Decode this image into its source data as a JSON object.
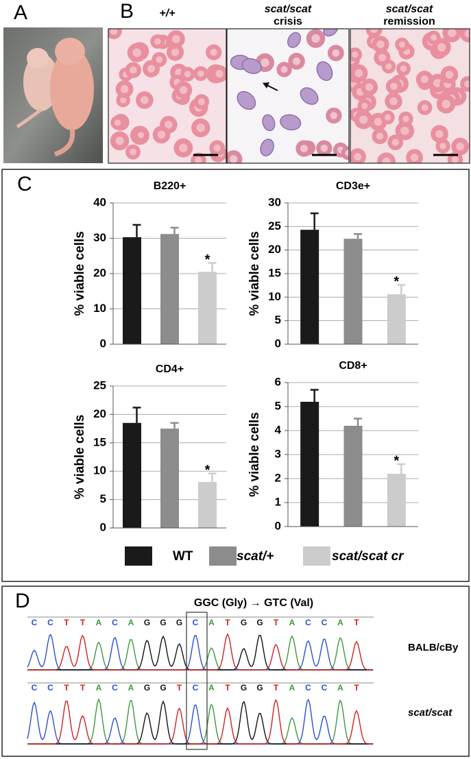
{
  "panel_a": {
    "label": "A"
  },
  "panel_b": {
    "label": "B",
    "images": [
      {
        "title": [
          "+/+"
        ]
      },
      {
        "title": [
          "scat/scat",
          "crisis"
        ]
      },
      {
        "title": [
          "scat/scat",
          "remission"
        ]
      }
    ]
  },
  "panel_c": {
    "label": "C"
  },
  "legend": {
    "entries": [
      {
        "name": "WT",
        "color": "#1a1a1a"
      },
      {
        "name": "scat/+",
        "color": "#8c8c8c"
      },
      {
        "name": "scat/scat cr",
        "color": "#cccccc"
      }
    ]
  },
  "chart_data": [
    {
      "type": "bar",
      "title": "B220+",
      "y_label": "% viable cells",
      "categories": [
        null,
        null,
        null
      ],
      "values": [
        30.3,
        31.2,
        20.5
      ],
      "errors": [
        3.5,
        1.8,
        2.5
      ],
      "annotation": "*",
      "ylim": [
        0,
        40
      ],
      "yticks": [
        0,
        10,
        20,
        30,
        40
      ],
      "grid": true
    },
    {
      "type": "bar",
      "title": "CD3e+",
      "y_label": "% viable cells",
      "categories": [
        null,
        null,
        null
      ],
      "values": [
        24.3,
        22.4,
        10.6
      ],
      "errors": [
        3.5,
        1,
        2
      ],
      "annotation": "*",
      "ylim": [
        0,
        30
      ],
      "yticks": [
        0,
        5,
        10,
        15,
        20,
        25,
        30
      ],
      "grid": true
    },
    {
      "type": "bar",
      "title": "CD4+",
      "y_label": "% viable cells",
      "categories": [
        null,
        null,
        null
      ],
      "values": [
        18.5,
        17.5,
        8.1
      ],
      "errors": [
        2.7,
        1,
        1.5
      ],
      "annotation": "*",
      "ylim": [
        0,
        25
      ],
      "yticks": [
        0,
        5,
        10,
        15,
        20,
        25
      ],
      "grid": true
    },
    {
      "type": "bar",
      "title": "CD8+",
      "y_label": "% viable cells",
      "categories": [
        null,
        null,
        null
      ],
      "values": [
        5.2,
        4.2,
        2.2
      ],
      "errors": [
        0.5,
        0.3,
        0.4
      ],
      "annotation": "*",
      "ylim": [
        0,
        6
      ],
      "yticks": [
        0,
        1,
        2,
        3,
        4,
        5,
        6
      ],
      "grid": true
    }
  ],
  "panel_d": {
    "label": "D",
    "title": "GGC (Gly) → GTC (Val)",
    "traces": [
      {
        "name": "BALB/cBy",
        "bases": [
          "C",
          "C",
          "T",
          "T",
          "A",
          "C",
          "A",
          "G",
          "G",
          "G",
          "C",
          "A",
          "T",
          "G",
          "G",
          "T",
          "A",
          "C",
          "C",
          "A",
          "T"
        ]
      },
      {
        "name": "scat/scat",
        "bases": [
          "C",
          "C",
          "T",
          "T",
          "A",
          "C",
          "A",
          "G",
          "G",
          "T",
          "C",
          "A",
          "T",
          "G",
          "G",
          "T",
          "A",
          "C",
          "C",
          "A",
          "T"
        ]
      }
    ]
  }
}
